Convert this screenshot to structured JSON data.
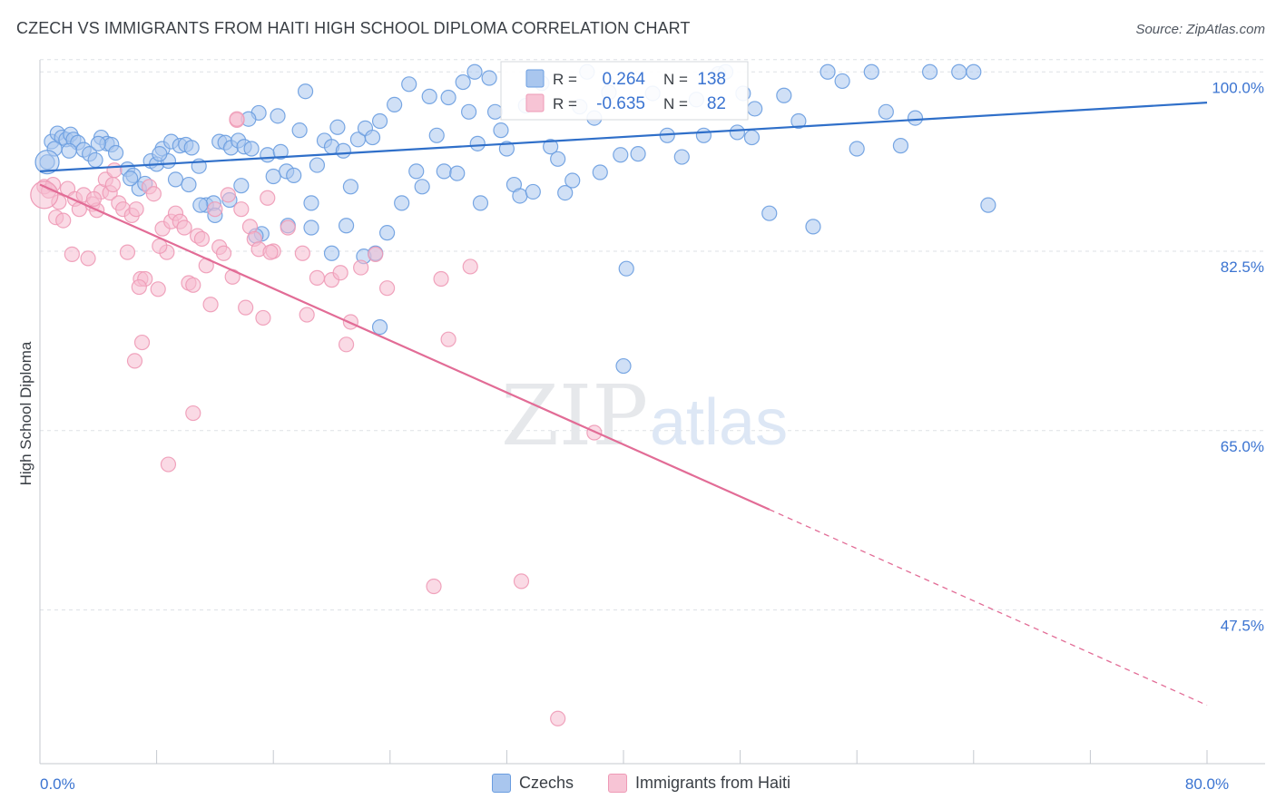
{
  "title": "CZECH VS IMMIGRANTS FROM HAITI HIGH SCHOOL DIPLOMA CORRELATION CHART",
  "source": "Source: ZipAtlas.com",
  "watermark": {
    "zip": "ZIP",
    "atlas": "atlas"
  },
  "colors": {
    "czech": "#6a9de0",
    "czech_line": "#2f6fc9",
    "haiti": "#ee9ab6",
    "haiti_line": "#e26c96",
    "value_text": "#3b74d1",
    "grid": "#dde1e6"
  },
  "stats": [
    {
      "r_label": "R =",
      "r_value": "0.264",
      "n_label": "N =",
      "n_value": "138"
    },
    {
      "r_label": "R =",
      "r_value": "-0.635",
      "n_label": "N =",
      "n_value": "82"
    }
  ],
  "legend": {
    "czech": "Czechs",
    "haiti": "Immigrants from Haiti"
  },
  "chart_data": {
    "type": "scatter",
    "xlabel": "",
    "ylabel": "High School Diploma",
    "x_tick_labels": [
      {
        "value": 0,
        "label": "0.0%"
      },
      {
        "value": 80,
        "label": "80.0%"
      }
    ],
    "y_tick_labels": [
      {
        "value": 100,
        "label": "100.0%"
      },
      {
        "value": 82.5,
        "label": "82.5%"
      },
      {
        "value": 65,
        "label": "65.0%"
      },
      {
        "value": 47.5,
        "label": "47.5%"
      }
    ],
    "xlim": [
      0,
      80
    ],
    "ylim": [
      32.5,
      102.5
    ],
    "grid": true,
    "series": [
      {
        "name": "Czechs",
        "color": "#6a9de0",
        "trendline": {
          "x": [
            0,
            80
          ],
          "y": [
            90.3,
            97.0
          ]
        },
        "points": [
          [
            0.5,
            91.2
          ],
          [
            0.8,
            93.2
          ],
          [
            1.2,
            94
          ],
          [
            1.5,
            93.6
          ],
          [
            1.8,
            93.4
          ],
          [
            2.1,
            93.9
          ],
          [
            2.3,
            93.4
          ],
          [
            2.6,
            93.1
          ],
          [
            3.0,
            92.4
          ],
          [
            3.4,
            92.0
          ],
          [
            3.8,
            91.4
          ],
          [
            4.2,
            93.6
          ],
          [
            4.6,
            93.0
          ],
          [
            4.9,
            92.9
          ],
          [
            5.2,
            92.1
          ],
          [
            6.0,
            90.5
          ],
          [
            6.4,
            89.9
          ],
          [
            6.8,
            88.6
          ],
          [
            7.2,
            89.1
          ],
          [
            7.6,
            91.3
          ],
          [
            8.0,
            91.0
          ],
          [
            8.4,
            92.5
          ],
          [
            8.8,
            91.3
          ],
          [
            9.0,
            93.2
          ],
          [
            9.6,
            92.8
          ],
          [
            10.0,
            92.9
          ],
          [
            10.4,
            92.6
          ],
          [
            10.9,
            90.8
          ],
          [
            11.4,
            87.0
          ],
          [
            11.9,
            87.2
          ],
          [
            12.3,
            93.2
          ],
          [
            12.7,
            93.1
          ],
          [
            13.1,
            92.6
          ],
          [
            13.6,
            93.3
          ],
          [
            14.0,
            92.7
          ],
          [
            14.5,
            92.5
          ],
          [
            15.0,
            96.0
          ],
          [
            15.6,
            91.9
          ],
          [
            16.0,
            89.8
          ],
          [
            16.5,
            92.2
          ],
          [
            16.9,
            90.3
          ],
          [
            17.4,
            89.9
          ],
          [
            17.8,
            94.3
          ],
          [
            18.2,
            98.1
          ],
          [
            18.6,
            87.2
          ],
          [
            19.0,
            90.9
          ],
          [
            19.5,
            93.3
          ],
          [
            20.0,
            92.7
          ],
          [
            20.4,
            94.6
          ],
          [
            20.8,
            92.3
          ],
          [
            21.3,
            88.8
          ],
          [
            21.8,
            93.4
          ],
          [
            22.3,
            94.5
          ],
          [
            22.8,
            93.6
          ],
          [
            23.3,
            95.2
          ],
          [
            23.8,
            84.3
          ],
          [
            24.3,
            96.8
          ],
          [
            24.8,
            87.2
          ],
          [
            25.3,
            98.8
          ],
          [
            25.8,
            90.3
          ],
          [
            26.2,
            88.8
          ],
          [
            26.7,
            97.6
          ],
          [
            27.2,
            93.8
          ],
          [
            27.7,
            90.3
          ],
          [
            28.0,
            97.5
          ],
          [
            28.6,
            90.1
          ],
          [
            29.0,
            99.0
          ],
          [
            29.4,
            96.1
          ],
          [
            29.8,
            100.0
          ],
          [
            30.2,
            87.2
          ],
          [
            30.8,
            99.4
          ],
          [
            31.2,
            96.1
          ],
          [
            31.6,
            94.3
          ],
          [
            32.0,
            92.5
          ],
          [
            32.5,
            89.0
          ],
          [
            32.9,
            87.9
          ],
          [
            33.3,
            96.7
          ],
          [
            33.8,
            88.3
          ],
          [
            34.4,
            98.9
          ],
          [
            35.0,
            92.7
          ],
          [
            35.5,
            91.5
          ],
          [
            36.0,
            88.2
          ],
          [
            36.5,
            89.4
          ],
          [
            37.0,
            96.6
          ],
          [
            37.5,
            100.0
          ],
          [
            38.0,
            95.5
          ],
          [
            38.4,
            90.2
          ],
          [
            39.0,
            98.0
          ],
          [
            39.8,
            91.9
          ],
          [
            40.2,
            80.8
          ],
          [
            41.0,
            92.0
          ],
          [
            42.0,
            97.9
          ],
          [
            43.0,
            93.8
          ],
          [
            44.0,
            91.7
          ],
          [
            45.0,
            97.3
          ],
          [
            45.5,
            93.8
          ],
          [
            46.5,
            99.8
          ],
          [
            47.0,
            100.0
          ],
          [
            47.8,
            94.1
          ],
          [
            48.2,
            97.9
          ],
          [
            48.8,
            93.6
          ],
          [
            49.0,
            96.4
          ],
          [
            50.0,
            86.2
          ],
          [
            51.0,
            97.7
          ],
          [
            52.0,
            95.2
          ],
          [
            53.0,
            84.9
          ],
          [
            54.0,
            100.0
          ],
          [
            55.0,
            99.1
          ],
          [
            56.0,
            92.5
          ],
          [
            57.0,
            100.0
          ],
          [
            58.0,
            96.1
          ],
          [
            59.0,
            92.8
          ],
          [
            60.0,
            95.5
          ],
          [
            61.0,
            100.0
          ],
          [
            63.0,
            100.0
          ],
          [
            64.0,
            100.0
          ],
          [
            65.0,
            87.0
          ],
          [
            13.8,
            88.9
          ],
          [
            15.2,
            84.2
          ],
          [
            18.6,
            84.8
          ],
          [
            22.2,
            82.0
          ],
          [
            23.0,
            82.3
          ],
          [
            23.3,
            75.1
          ],
          [
            40.0,
            71.3
          ],
          [
            16.3,
            95.7
          ],
          [
            14.3,
            95.4
          ],
          [
            6.2,
            89.6
          ],
          [
            2.0,
            92.3
          ],
          [
            4.0,
            93.0
          ],
          [
            8.2,
            92.0
          ],
          [
            9.3,
            89.5
          ],
          [
            10.2,
            89.0
          ],
          [
            11.0,
            87.0
          ],
          [
            12.0,
            86.0
          ],
          [
            1.0,
            92.5
          ],
          [
            20.0,
            82.3
          ],
          [
            13.0,
            87.5
          ],
          [
            14.8,
            84.0
          ],
          [
            17.0,
            85.0
          ],
          [
            21.0,
            85.0
          ],
          [
            30.0,
            93.0
          ]
        ]
      },
      {
        "name": "Immigrants from Haiti",
        "color": "#ee9ab6",
        "trendline": {
          "x": [
            0,
            50
          ],
          "y": [
            89.0,
            57.3
          ]
        },
        "trendline_extension": {
          "x": [
            50,
            80
          ],
          "y": [
            57.3,
            38.2
          ]
        },
        "points": [
          [
            0.3,
            88.8
          ],
          [
            0.6,
            88.4
          ],
          [
            0.9,
            89.0
          ],
          [
            1.1,
            85.8
          ],
          [
            1.3,
            87.3
          ],
          [
            1.6,
            85.5
          ],
          [
            1.9,
            88.6
          ],
          [
            2.2,
            82.2
          ],
          [
            2.4,
            87.6
          ],
          [
            2.7,
            86.6
          ],
          [
            3.0,
            88.0
          ],
          [
            3.3,
            81.8
          ],
          [
            3.6,
            87.1
          ],
          [
            3.9,
            86.5
          ],
          [
            4.2,
            88.3
          ],
          [
            4.5,
            89.5
          ],
          [
            4.8,
            88.2
          ],
          [
            5.1,
            90.4
          ],
          [
            5.4,
            87.2
          ],
          [
            5.7,
            86.6
          ],
          [
            6.0,
            82.4
          ],
          [
            6.3,
            86.0
          ],
          [
            6.6,
            86.6
          ],
          [
            6.9,
            79.8
          ],
          [
            7.2,
            79.8
          ],
          [
            7.5,
            88.8
          ],
          [
            7.8,
            88.1
          ],
          [
            8.1,
            78.8
          ],
          [
            8.4,
            84.7
          ],
          [
            8.7,
            82.4
          ],
          [
            9.0,
            85.4
          ],
          [
            9.3,
            86.2
          ],
          [
            9.6,
            85.4
          ],
          [
            9.9,
            84.8
          ],
          [
            10.2,
            79.4
          ],
          [
            10.5,
            79.2
          ],
          [
            10.8,
            84.0
          ],
          [
            11.1,
            83.7
          ],
          [
            11.4,
            81.1
          ],
          [
            11.7,
            77.3
          ],
          [
            12.0,
            86.6
          ],
          [
            12.3,
            82.9
          ],
          [
            12.6,
            82.3
          ],
          [
            12.9,
            88.0
          ],
          [
            13.2,
            80.0
          ],
          [
            13.5,
            95.3
          ],
          [
            13.8,
            86.6
          ],
          [
            14.1,
            77.0
          ],
          [
            14.4,
            84.9
          ],
          [
            14.7,
            83.7
          ],
          [
            15.0,
            82.7
          ],
          [
            15.3,
            76.0
          ],
          [
            15.6,
            87.7
          ],
          [
            16.0,
            82.5
          ],
          [
            17.0,
            84.8
          ],
          [
            18.0,
            82.3
          ],
          [
            18.3,
            76.3
          ],
          [
            19.0,
            79.9
          ],
          [
            20.0,
            79.7
          ],
          [
            20.6,
            80.4
          ],
          [
            21.0,
            73.4
          ],
          [
            21.3,
            75.6
          ],
          [
            22.0,
            80.9
          ],
          [
            23.0,
            82.2
          ],
          [
            23.8,
            78.9
          ],
          [
            27.0,
            49.8
          ],
          [
            27.5,
            79.8
          ],
          [
            28.0,
            73.9
          ],
          [
            29.5,
            81.0
          ],
          [
            33.0,
            50.3
          ],
          [
            35.5,
            36.9
          ],
          [
            38.0,
            64.8
          ],
          [
            7.0,
            73.6
          ],
          [
            6.5,
            71.8
          ],
          [
            10.5,
            66.7
          ],
          [
            8.8,
            61.7
          ],
          [
            6.8,
            79.0
          ],
          [
            8.2,
            83.0
          ],
          [
            13.5,
            95.4
          ],
          [
            15.8,
            82.4
          ],
          [
            5.0,
            89.0
          ],
          [
            3.7,
            87.6
          ]
        ]
      }
    ]
  }
}
